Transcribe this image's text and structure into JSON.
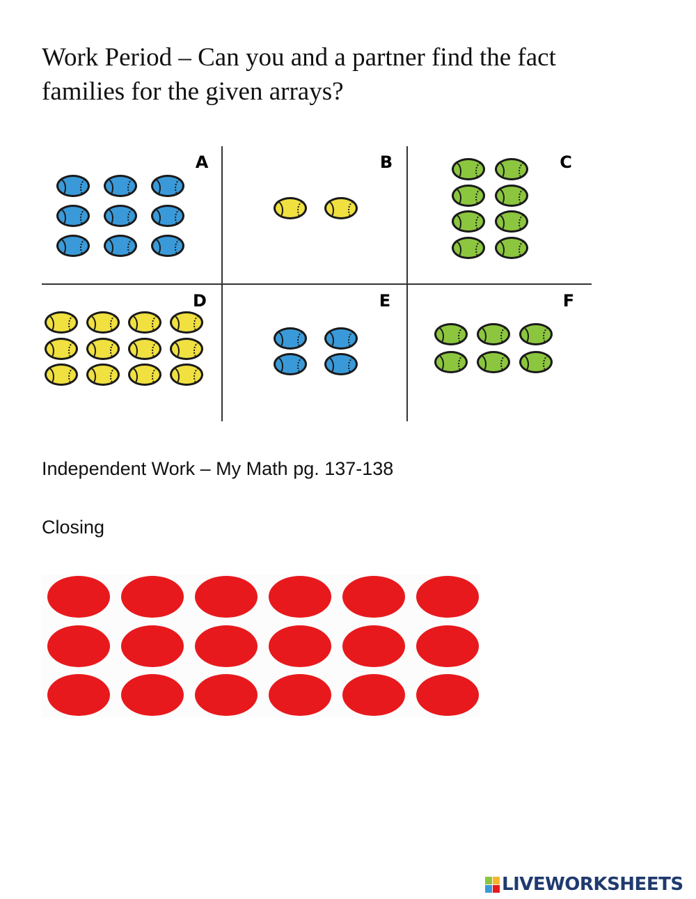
{
  "title": "Work Period – Can you and a partner find the fact families for the given arrays?",
  "arrays": [
    {
      "label": "A",
      "rows": 3,
      "cols": 3,
      "color": "#3a9ad9"
    },
    {
      "label": "B",
      "rows": 1,
      "cols": 2,
      "color": "#f0e040"
    },
    {
      "label": "C",
      "rows": 4,
      "cols": 2,
      "color": "#8cc63f"
    },
    {
      "label": "D",
      "rows": 3,
      "cols": 4,
      "color": "#f0e040"
    },
    {
      "label": "E",
      "rows": 2,
      "cols": 2,
      "color": "#3a9ad9"
    },
    {
      "label": "F",
      "rows": 2,
      "cols": 3,
      "color": "#8cc63f"
    }
  ],
  "independent_work": "Independent Work – My Math pg. 137-138",
  "closing": "Closing",
  "closing_array": {
    "rows": 3,
    "cols": 6,
    "color": "#e8191d"
  },
  "logo": {
    "text": "LIVEWORKSHEETS",
    "colors": [
      "#8cc63f",
      "#f7b52c",
      "#3a9ad9",
      "#e8191d"
    ]
  }
}
